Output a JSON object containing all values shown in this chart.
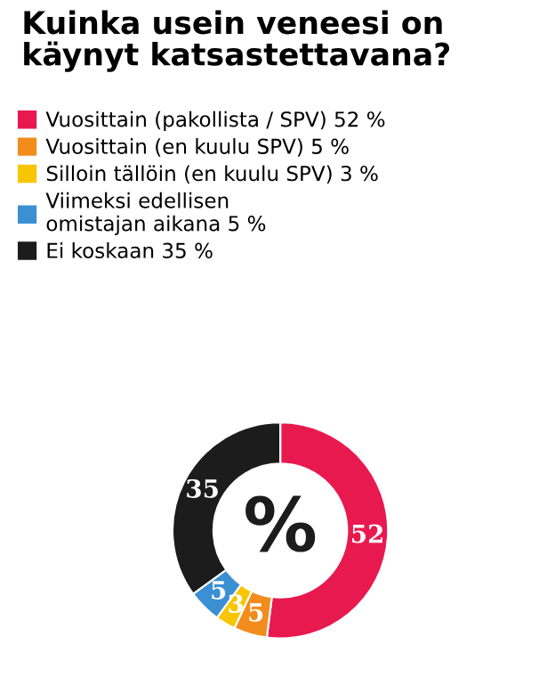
{
  "chart_data": {
    "type": "donut",
    "title": "Kuinka usein veneesi on\nkäynyt katsastettavana?",
    "categories": [
      "Vuosittain (pakollista / SPV) 52 %",
      "Vuosittain (en kuulu SPV) 5 %",
      "Silloin tällöin (en kuulu SPV) 3 %",
      "Viimeksi edellisen\nomistajan aikana 5 %",
      "Ei koskaan 35 %"
    ],
    "values": [
      52,
      5,
      3,
      5,
      35
    ],
    "colors": [
      "#e8194f",
      "#f28c1c",
      "#f7c600",
      "#3b8fd3",
      "#1c1c1c"
    ],
    "data_labels": true,
    "legend": "top left",
    "annotations": [
      "%"
    ]
  }
}
